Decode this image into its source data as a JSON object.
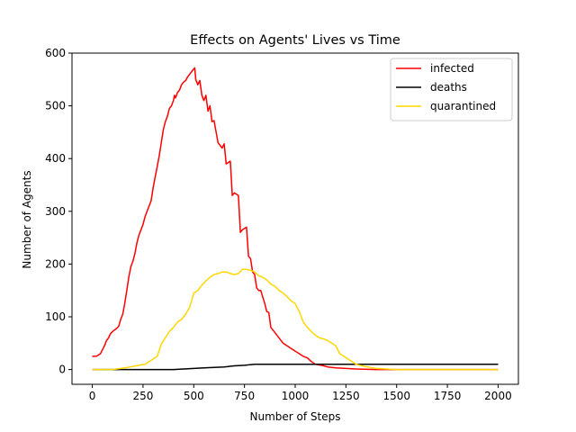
{
  "chart_data": {
    "type": "line",
    "title": "Effects on Agents' Lives vs Time",
    "xlabel": "Number of Steps",
    "ylabel": "Number of Agents",
    "xlim": [
      -100,
      2100
    ],
    "ylim": [
      -28,
      600
    ],
    "xticks": [
      0,
      250,
      500,
      750,
      1000,
      1250,
      1500,
      1750,
      2000
    ],
    "yticks": [
      0,
      100,
      200,
      300,
      400,
      500,
      600
    ],
    "grid": false,
    "legend_position": "top-right",
    "series": [
      {
        "name": "infected",
        "color": "#ff0000",
        "x": [
          0,
          20,
          40,
          60,
          70,
          80,
          90,
          100,
          110,
          120,
          130,
          140,
          150,
          160,
          170,
          180,
          190,
          200,
          210,
          220,
          230,
          240,
          250,
          260,
          270,
          280,
          290,
          300,
          310,
          320,
          330,
          340,
          350,
          360,
          370,
          380,
          390,
          400,
          405,
          410,
          420,
          430,
          440,
          450,
          460,
          470,
          480,
          490,
          500,
          505,
          510,
          520,
          530,
          540,
          550,
          560,
          570,
          580,
          590,
          600,
          620,
          640,
          650,
          660,
          680,
          690,
          700,
          720,
          730,
          740,
          760,
          770,
          780,
          790,
          800,
          810,
          820,
          830,
          850,
          860,
          870,
          880,
          900,
          920,
          940,
          960,
          980,
          1000,
          1020,
          1040,
          1060,
          1080,
          1100,
          1130,
          1160,
          1200,
          1250,
          1300,
          1400,
          1500,
          1600,
          1700,
          1800,
          1900,
          2000
        ],
        "y": [
          25,
          25,
          30,
          45,
          55,
          60,
          68,
          72,
          75,
          78,
          82,
          95,
          105,
          125,
          150,
          175,
          195,
          205,
          220,
          240,
          255,
          265,
          275,
          290,
          300,
          310,
          320,
          345,
          365,
          385,
          405,
          430,
          455,
          470,
          480,
          495,
          500,
          510,
          520,
          515,
          525,
          530,
          540,
          545,
          548,
          555,
          560,
          565,
          570,
          572,
          550,
          540,
          548,
          520,
          510,
          520,
          490,
          500,
          470,
          472,
          430,
          420,
          428,
          390,
          395,
          330,
          335,
          330,
          260,
          265,
          270,
          215,
          210,
          185,
          180,
          155,
          150,
          150,
          125,
          110,
          108,
          80,
          70,
          60,
          50,
          45,
          40,
          35,
          30,
          25,
          22,
          15,
          10,
          8,
          5,
          3,
          2,
          1,
          0,
          0,
          0,
          0,
          0,
          0,
          0
        ]
      },
      {
        "name": "deaths",
        "color": "#000000",
        "x": [
          0,
          400,
          450,
          500,
          550,
          600,
          650,
          700,
          750,
          800,
          850,
          900,
          1000,
          2000
        ],
        "y": [
          0,
          0,
          1,
          2,
          3,
          4,
          5,
          7,
          8,
          10,
          10,
          10,
          10,
          10
        ]
      },
      {
        "name": "quarantined",
        "color": "#ffd700",
        "x": [
          0,
          100,
          160,
          200,
          230,
          260,
          280,
          300,
          320,
          340,
          360,
          380,
          400,
          420,
          440,
          460,
          480,
          500,
          520,
          540,
          560,
          580,
          600,
          620,
          640,
          660,
          680,
          700,
          720,
          740,
          760,
          780,
          800,
          820,
          840,
          860,
          880,
          900,
          920,
          940,
          960,
          980,
          1000,
          1020,
          1040,
          1060,
          1080,
          1100,
          1120,
          1140,
          1160,
          1180,
          1200,
          1220,
          1240,
          1260,
          1280,
          1300,
          1320,
          1340,
          1360,
          1380,
          1400,
          1450,
          1500,
          1600,
          1700,
          1800,
          1900,
          2000
        ],
        "y": [
          0,
          0,
          3,
          6,
          8,
          10,
          15,
          20,
          25,
          48,
          60,
          72,
          80,
          90,
          95,
          105,
          118,
          145,
          150,
          160,
          168,
          175,
          180,
          182,
          185,
          185,
          182,
          180,
          182,
          190,
          190,
          188,
          185,
          178,
          175,
          170,
          162,
          158,
          150,
          145,
          138,
          130,
          125,
          110,
          90,
          80,
          72,
          65,
          60,
          58,
          55,
          50,
          45,
          30,
          25,
          20,
          15,
          10,
          8,
          6,
          5,
          3,
          2,
          1,
          0,
          0,
          0,
          0,
          0,
          0
        ]
      }
    ]
  }
}
